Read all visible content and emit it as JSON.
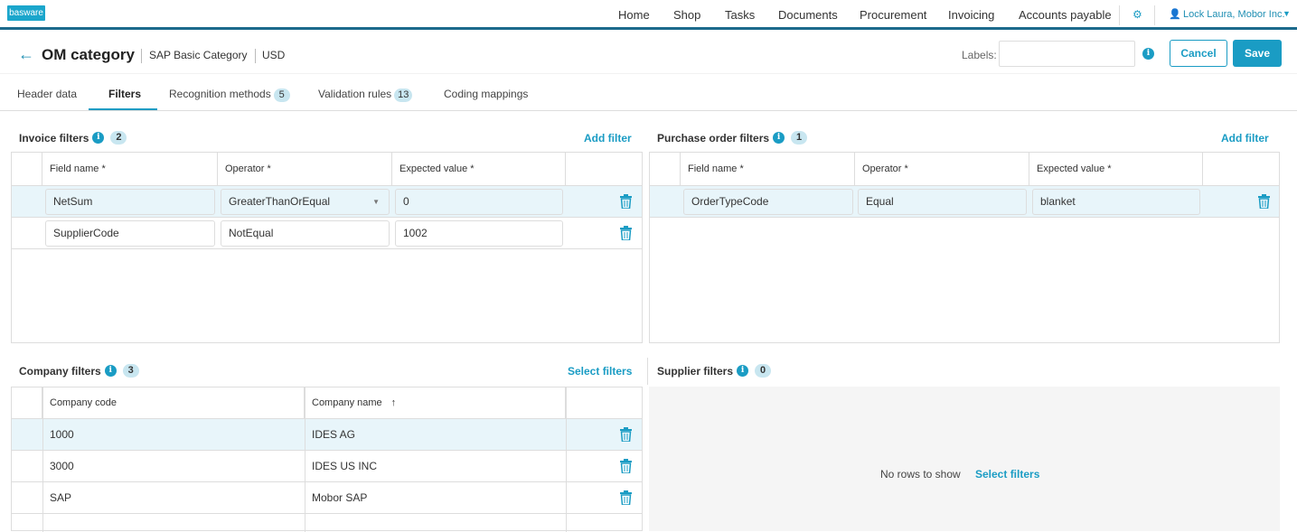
{
  "nav": {
    "logo": "basware",
    "items": [
      "Home",
      "Shop",
      "Tasks",
      "Documents",
      "Procurement",
      "Invoicing",
      "Accounts payable"
    ],
    "user": "Lock Laura, Mobor Inc."
  },
  "header": {
    "title": "OM category",
    "crumbs": [
      "SAP Basic Category",
      "USD"
    ],
    "labels_label": "Labels:",
    "labels_value": "",
    "cancel": "Cancel",
    "save": "Save"
  },
  "tabs": [
    {
      "label": "Header data"
    },
    {
      "label": "Filters",
      "active": true
    },
    {
      "label": "Recognition methods",
      "badge": "5"
    },
    {
      "label": "Validation rules",
      "badge": "13"
    },
    {
      "label": "Coding mappings"
    }
  ],
  "invoice": {
    "title": "Invoice filters",
    "count": "2",
    "action": "Add filter",
    "columns": [
      "Field name *",
      "Operator *",
      "Expected value *"
    ],
    "rows": [
      [
        "NetSum",
        "GreaterThanOrEqual",
        "0"
      ],
      [
        "SupplierCode",
        "NotEqual",
        "1002"
      ]
    ]
  },
  "po": {
    "title": "Purchase order filters",
    "count": "1",
    "action": "Add filter",
    "columns": [
      "Field name *",
      "Operator *",
      "Expected value *"
    ],
    "rows": [
      [
        "OrderTypeCode",
        "Equal",
        "blanket"
      ]
    ]
  },
  "company": {
    "title": "Company filters",
    "count": "3",
    "action": "Select filters",
    "columns": [
      "Company code",
      "Company name"
    ],
    "rows": [
      [
        "1000",
        "IDES AG"
      ],
      [
        "3000",
        "IDES US INC"
      ],
      [
        "SAP",
        "Mobor SAP"
      ]
    ]
  },
  "supplier": {
    "title": "Supplier filters",
    "count": "0",
    "empty": "No rows to show",
    "action": "Select filters"
  },
  "colors": {
    "accent": "#1a9cc4",
    "nav_border": "#1c6a8c",
    "selected_row": "#e8f5fa"
  }
}
